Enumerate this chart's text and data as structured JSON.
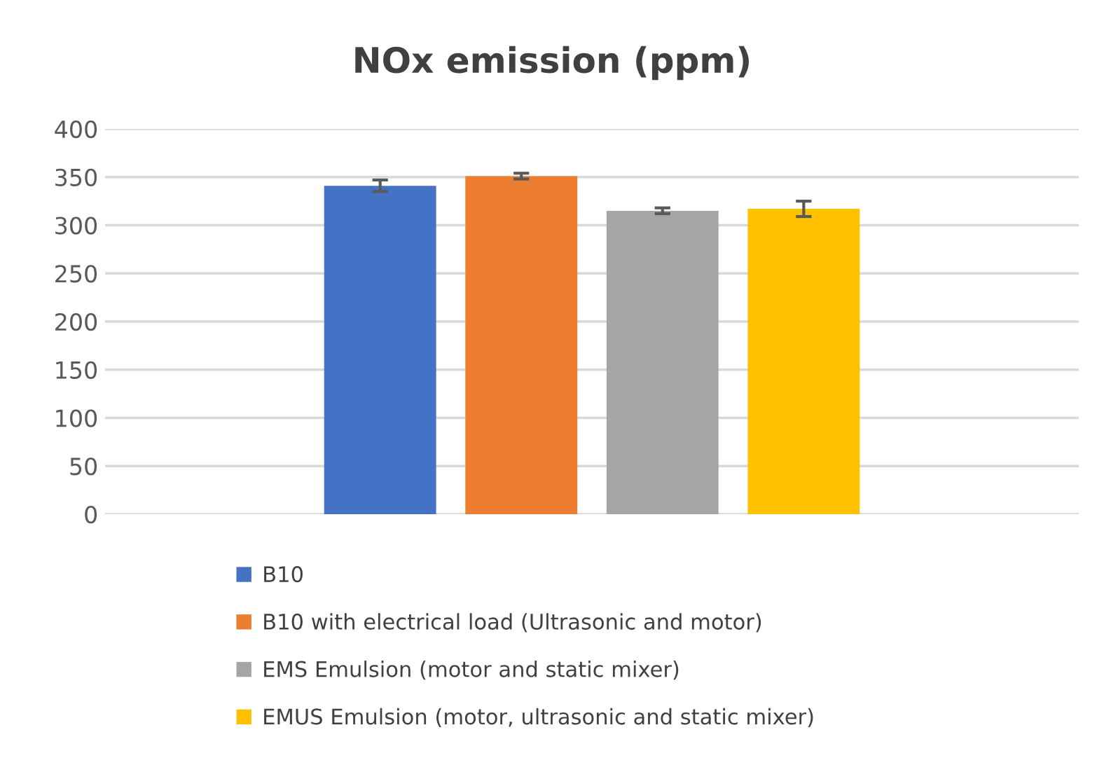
{
  "chart_data": {
    "type": "bar",
    "title": "NOx emission (ppm)",
    "categories": [
      null
    ],
    "series": [
      {
        "name": "B10",
        "color": "#4472c4",
        "values": [
          341
        ],
        "errors": [
          6
        ]
      },
      {
        "name": "B10 with electrical load (Ultrasonic and motor)",
        "color": "#ed7d31",
        "values": [
          351
        ],
        "errors": [
          3
        ]
      },
      {
        "name": "EMS Emulsion (motor and static mixer)",
        "color": "#a5a5a5",
        "values": [
          315
        ],
        "errors": [
          3
        ]
      },
      {
        "name": "EMUS Emulsion (motor, ultrasonic and static mixer)",
        "color": "#ffc000",
        "values": [
          317
        ],
        "errors": [
          8
        ]
      }
    ],
    "ylim": [
      0,
      400
    ],
    "yticks": [
      0,
      50,
      100,
      150,
      200,
      250,
      300,
      350,
      400
    ],
    "grid": "y",
    "legend": "bottom"
  }
}
